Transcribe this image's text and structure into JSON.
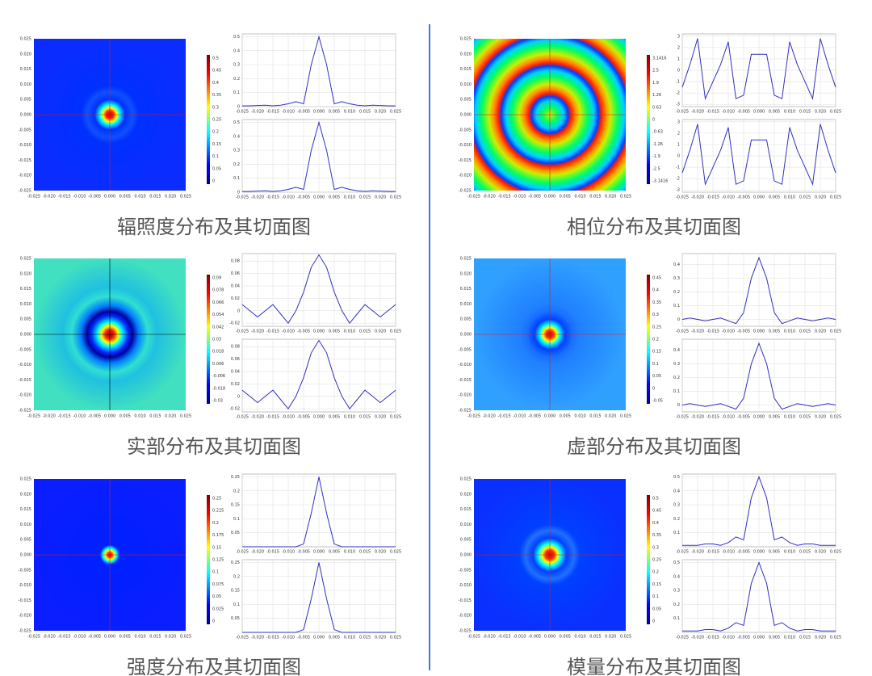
{
  "heatmap_ticks": [
    {
      "value": -0.025,
      "label": "-0.025"
    },
    {
      "value": -0.02,
      "label": "-0.020"
    },
    {
      "value": -0.015,
      "label": "-0.015"
    },
    {
      "value": -0.01,
      "label": "-0.010"
    },
    {
      "value": -0.005,
      "label": "-0.005"
    },
    {
      "value": 0,
      "label": "0.000"
    },
    {
      "value": 0.005,
      "label": "0.005"
    },
    {
      "value": 0.01,
      "label": "0.010"
    },
    {
      "value": 0.015,
      "label": "0.015"
    },
    {
      "value": 0.02,
      "label": "0.020"
    },
    {
      "value": 0.025,
      "label": "0.025"
    }
  ],
  "heatmap_lim": [
    -0.025,
    0.025
  ],
  "profile_x": [
    -0.025,
    -0.0225,
    -0.02,
    -0.0175,
    -0.015,
    -0.0125,
    -0.01,
    -0.0075,
    -0.005,
    -0.0025,
    0,
    0.0025,
    0.005,
    0.0075,
    0.01,
    0.0125,
    0.015,
    0.0175,
    0.02,
    0.0225,
    0.025
  ],
  "chart_data": [
    {
      "type": "panel",
      "caption": "辐照度分布及其切面图",
      "colorbar": [
        0.5,
        0.45,
        0.4,
        0.35,
        0.3,
        0.25,
        0.2,
        0.15,
        0.1,
        0.05,
        0
      ],
      "profiles": [
        {
          "type": "line",
          "color": "#3030c0",
          "ylim": [
            0,
            0.52
          ],
          "yticks": [
            0,
            0.1,
            0.2,
            0.3,
            0.4,
            0.5
          ],
          "values": [
            0.005,
            0.006,
            0.008,
            0.01,
            0.006,
            0.01,
            0.02,
            0.035,
            0.02,
            0.3,
            0.5,
            0.3,
            0.02,
            0.035,
            0.02,
            0.01,
            0.006,
            0.01,
            0.008,
            0.006,
            0.005
          ]
        },
        {
          "type": "line",
          "color": "#3030c0",
          "ylim": [
            0,
            0.52
          ],
          "yticks": [
            0,
            0.1,
            0.2,
            0.3,
            0.4,
            0.5
          ],
          "values": [
            0.005,
            0.006,
            0.008,
            0.01,
            0.006,
            0.01,
            0.02,
            0.035,
            0.02,
            0.3,
            0.5,
            0.3,
            0.02,
            0.035,
            0.02,
            0.01,
            0.006,
            0.01,
            0.008,
            0.006,
            0.005
          ]
        }
      ]
    },
    {
      "type": "panel",
      "caption": "相位分布及其切面图",
      "colorbar": [
        3.1416,
        2.5,
        1.9,
        1.26,
        0.63,
        0,
        -0.63,
        -1.26,
        -1.9,
        -2.5,
        -3.1416
      ],
      "profiles": [
        {
          "type": "line",
          "color": "#3030c0",
          "ylim": [
            -3.2,
            3.2
          ],
          "yticks": [
            -3,
            -2,
            -1,
            0,
            1,
            2,
            3
          ],
          "values": [
            -1.5,
            0.5,
            2.8,
            -2.5,
            -1,
            0.5,
            2.5,
            -2.5,
            -2.2,
            1.4,
            1.4,
            1.4,
            -2.2,
            -2.5,
            2.5,
            0.5,
            -1,
            -2.5,
            2.8,
            0.5,
            -1.5
          ]
        },
        {
          "type": "line",
          "color": "#3030c0",
          "ylim": [
            -3.2,
            3.2
          ],
          "yticks": [
            -3,
            -2,
            -1,
            0,
            1,
            2,
            3
          ],
          "values": [
            -1.5,
            0.5,
            2.8,
            -2.5,
            -1,
            0.5,
            2.5,
            -2.5,
            -2.2,
            1.4,
            1.4,
            1.4,
            -2.2,
            -2.5,
            2.5,
            0.5,
            -1,
            -2.5,
            2.8,
            0.5,
            -1.5
          ]
        }
      ]
    },
    {
      "type": "panel",
      "caption": "实部分布及其切面图",
      "colorbar": [
        0.09,
        0.078,
        0.066,
        0.054,
        0.042,
        0.03,
        0.018,
        0.006,
        -0.006,
        -0.018,
        -0.03
      ],
      "profiles": [
        {
          "type": "line",
          "color": "#3030c0",
          "ylim": [
            -0.025,
            0.092
          ],
          "yticks": [
            -0.02,
            0,
            0.02,
            0.04,
            0.06,
            0.08
          ],
          "values": [
            0.01,
            0,
            -0.01,
            0,
            0.01,
            -0.005,
            -0.02,
            0,
            0.03,
            0.07,
            0.09,
            0.07,
            0.03,
            0,
            -0.02,
            -0.005,
            0.01,
            0,
            -0.01,
            0,
            0.01
          ]
        },
        {
          "type": "line",
          "color": "#3030c0",
          "ylim": [
            -0.025,
            0.092
          ],
          "yticks": [
            -0.02,
            0,
            0.02,
            0.04,
            0.06,
            0.08
          ],
          "values": [
            0.01,
            0,
            -0.01,
            0,
            0.01,
            -0.005,
            -0.02,
            0,
            0.03,
            0.07,
            0.09,
            0.07,
            0.03,
            0,
            -0.02,
            -0.005,
            0.01,
            0,
            -0.01,
            0,
            0.01
          ]
        }
      ]
    },
    {
      "type": "panel",
      "caption": "虚部分布及其切面图",
      "colorbar": [
        0.45,
        0.4,
        0.35,
        0.3,
        0.25,
        0.2,
        0.15,
        0.1,
        0.05,
        0,
        -0.05
      ],
      "profiles": [
        {
          "type": "line",
          "color": "#3030c0",
          "ylim": [
            -0.05,
            0.48
          ],
          "yticks": [
            0,
            0.1,
            0.2,
            0.3,
            0.4
          ],
          "values": [
            0,
            0.01,
            0,
            -0.01,
            0,
            0.01,
            -0.01,
            -0.03,
            0.05,
            0.3,
            0.45,
            0.3,
            0.05,
            -0.03,
            -0.01,
            0.01,
            0,
            -0.01,
            0,
            0.01,
            0
          ]
        },
        {
          "type": "line",
          "color": "#3030c0",
          "ylim": [
            -0.05,
            0.48
          ],
          "yticks": [
            0,
            0.1,
            0.2,
            0.3,
            0.4
          ],
          "values": [
            0,
            0.01,
            0,
            -0.01,
            0,
            0.01,
            -0.01,
            -0.03,
            0.05,
            0.3,
            0.45,
            0.3,
            0.05,
            -0.03,
            -0.01,
            0.01,
            0,
            -0.01,
            0,
            0.01,
            0
          ]
        }
      ]
    },
    {
      "type": "panel",
      "caption": "强度分布及其切面图",
      "colorbar": [
        0.25,
        0.225,
        0.2,
        0.175,
        0.15,
        0.125,
        0.1,
        0.075,
        0.05,
        0.025,
        0
      ],
      "profiles": [
        {
          "type": "line",
          "color": "#3030c0",
          "ylim": [
            0,
            0.26
          ],
          "yticks": [
            0.05,
            0.1,
            0.15,
            0.2,
            0.25
          ],
          "values": [
            0,
            0,
            0,
            0,
            0,
            0,
            0,
            0,
            0.01,
            0.12,
            0.25,
            0.12,
            0.01,
            0,
            0,
            0,
            0,
            0,
            0,
            0,
            0
          ]
        },
        {
          "type": "line",
          "color": "#3030c0",
          "ylim": [
            0,
            0.26
          ],
          "yticks": [
            0.05,
            0.1,
            0.15,
            0.2,
            0.25
          ],
          "values": [
            0,
            0,
            0,
            0,
            0,
            0,
            0,
            0,
            0.01,
            0.12,
            0.25,
            0.12,
            0.01,
            0,
            0,
            0,
            0,
            0,
            0,
            0,
            0
          ]
        }
      ]
    },
    {
      "type": "panel",
      "caption": "模量分布及其切面图",
      "colorbar": [
        0.5,
        0.45,
        0.4,
        0.35,
        0.3,
        0.25,
        0.2,
        0.15,
        0.1,
        0.05,
        0
      ],
      "profiles": [
        {
          "type": "line",
          "color": "#3030c0",
          "ylim": [
            0,
            0.52
          ],
          "yticks": [
            0.1,
            0.2,
            0.3,
            0.4,
            0.5
          ],
          "values": [
            0.01,
            0.01,
            0.01,
            0.02,
            0.02,
            0.01,
            0.03,
            0.07,
            0.05,
            0.35,
            0.5,
            0.35,
            0.05,
            0.07,
            0.03,
            0.01,
            0.02,
            0.02,
            0.01,
            0.01,
            0.01
          ]
        },
        {
          "type": "line",
          "color": "#3030c0",
          "ylim": [
            0,
            0.52
          ],
          "yticks": [
            0.1,
            0.2,
            0.3,
            0.4,
            0.5
          ],
          "values": [
            0.01,
            0.01,
            0.01,
            0.02,
            0.02,
            0.01,
            0.03,
            0.07,
            0.05,
            0.35,
            0.5,
            0.35,
            0.05,
            0.07,
            0.03,
            0.01,
            0.02,
            0.02,
            0.01,
            0.01,
            0.01
          ]
        }
      ]
    }
  ]
}
